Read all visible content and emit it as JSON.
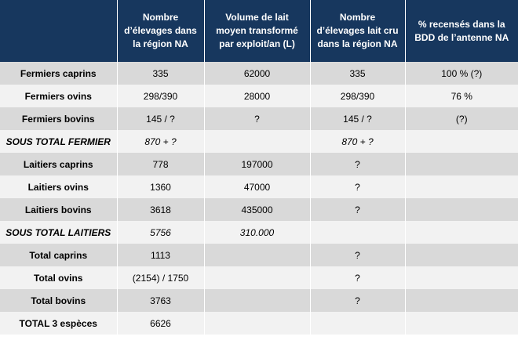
{
  "table": {
    "headers": [
      [],
      [
        "Nombre",
        "d’élevages dans",
        "la région NA"
      ],
      [
        "Volume de lait",
        "moyen transformé",
        "par exploit/an (L)"
      ],
      [
        "Nombre",
        "d’élevages lait cru",
        "dans la région NA"
      ],
      [
        "% recensés dans la",
        "BDD de l’antenne NA"
      ]
    ],
    "rows": [
      {
        "type": "normal",
        "cells": [
          "Fermiers caprins",
          "335",
          "62000",
          "335",
          "100 % (?)"
        ]
      },
      {
        "type": "normal",
        "cells": [
          "Fermiers ovins",
          "298/390",
          "28000",
          "298/390",
          "76 %"
        ]
      },
      {
        "type": "normal",
        "cells": [
          "Fermiers bovins",
          "145 / ?",
          "?",
          "145 / ?",
          "(?)"
        ]
      },
      {
        "type": "subtotal",
        "cells": [
          "SOUS TOTAL FERMIER",
          "870 + ?",
          "",
          "870 + ?",
          ""
        ]
      },
      {
        "type": "normal",
        "cells": [
          "Laitiers caprins",
          "778",
          "197000",
          "?",
          ""
        ]
      },
      {
        "type": "normal",
        "cells": [
          "Laitiers ovins",
          "1360",
          "47000",
          "?",
          ""
        ]
      },
      {
        "type": "normal",
        "cells": [
          "Laitiers bovins",
          "3618",
          "435000",
          "?",
          ""
        ]
      },
      {
        "type": "subtotal",
        "cells": [
          "SOUS TOTAL LAITIERS",
          "5756",
          "310.000",
          "",
          ""
        ]
      },
      {
        "type": "normal",
        "cells": [
          "Total caprins",
          "1113",
          "",
          "?",
          ""
        ]
      },
      {
        "type": "normal",
        "cells": [
          "Total ovins",
          "(2154) / 1750",
          "",
          "?",
          ""
        ]
      },
      {
        "type": "normal",
        "cells": [
          "Total bovins",
          "3763",
          "",
          "?",
          ""
        ]
      },
      {
        "type": "normal",
        "cells": [
          "TOTAL 3 espèces",
          "6626",
          "",
          "",
          ""
        ]
      }
    ]
  },
  "colors": {
    "header_bg": "#17375e",
    "header_text": "#ffffff",
    "row_shade_dark": "#d9d9d9",
    "row_shade_light": "#f2f2f2"
  }
}
